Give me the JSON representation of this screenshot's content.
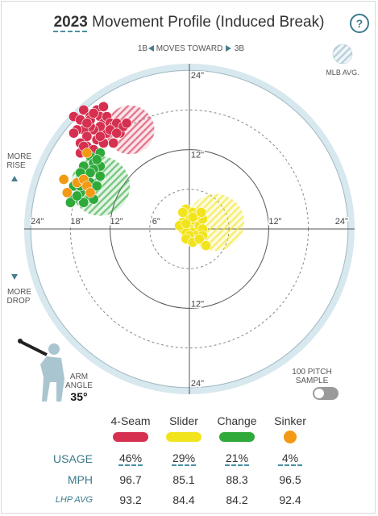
{
  "header": {
    "year": "2023",
    "title": "Movement Profile (Induced Break)",
    "help_icon": "question-icon",
    "help_text": "?"
  },
  "chart": {
    "direction_label": "MOVES TOWARD",
    "direction_left": "1B",
    "direction_right": "3B",
    "legend_mlb": "MLB AVG.",
    "more_rise": [
      "MORE",
      "RISE"
    ],
    "more_drop": [
      "MORE",
      "DROP"
    ],
    "ring_labels_top": [
      "24\"",
      "12\""
    ],
    "ring_labels_bottom": [
      "12\"",
      "24\""
    ],
    "ring_labels_left": [
      "24\"",
      "18\"",
      "12\"",
      "6\""
    ],
    "ring_labels_right": [
      "12\"",
      "24\""
    ],
    "colors": {
      "background": "#d7e8ee",
      "four_seam": "#d63050",
      "slider": "#f2e41c",
      "change": "#2faa3a",
      "sinker": "#f39a14"
    }
  },
  "chart_data": {
    "type": "scatter",
    "title": "2023 Movement Profile (Induced Break)",
    "xlabel": "MOVES TOWARD",
    "ylabel": "",
    "xlim": [
      -24,
      24
    ],
    "ylim": [
      -24,
      24
    ],
    "grid": true,
    "series": [
      {
        "name": "4-Seam",
        "color": "#d63050",
        "mlb_avg": {
          "x": -9,
          "y": 15,
          "r": 3.7
        },
        "points": [
          [
            -17.5,
            17
          ],
          [
            -16,
            18
          ],
          [
            -15,
            17
          ],
          [
            -14,
            18
          ],
          [
            -13.5,
            17
          ],
          [
            -13,
            16
          ],
          [
            -12.5,
            17
          ],
          [
            -12,
            16
          ],
          [
            -11.5,
            15.5
          ],
          [
            -11,
            16
          ],
          [
            -10.5,
            14.5
          ],
          [
            -10,
            15.5
          ],
          [
            -9.5,
            16
          ],
          [
            -12.5,
            14.5
          ],
          [
            -13.5,
            15.5
          ],
          [
            -14.5,
            15
          ],
          [
            -15,
            15.5
          ],
          [
            -16,
            15
          ],
          [
            -17,
            15
          ],
          [
            -15.5,
            14
          ],
          [
            -14,
            13.5
          ],
          [
            -13,
            13
          ],
          [
            -11.5,
            13
          ],
          [
            -15.5,
            12.5
          ],
          [
            -14.5,
            12
          ],
          [
            -16.5,
            13
          ],
          [
            -15,
            16.5
          ],
          [
            -16.5,
            16.5
          ],
          [
            -13,
            18.5
          ],
          [
            -14.5,
            17.5
          ],
          [
            -15.5,
            16
          ],
          [
            -12,
            15
          ],
          [
            -17.5,
            14.5
          ],
          [
            -16.5,
            11.5
          ],
          [
            -16,
            12.5
          ],
          [
            -11,
            14.5
          ],
          [
            -13.5,
            14
          ]
        ]
      },
      {
        "name": "Slider",
        "color": "#f2e41c",
        "mlb_avg": {
          "x": 4,
          "y": 1,
          "r": 4.3
        },
        "points": [
          [
            -0.5,
            3
          ],
          [
            0,
            2
          ],
          [
            0.5,
            2.5
          ],
          [
            -0.5,
            1.5
          ],
          [
            0.5,
            1
          ],
          [
            -1,
            1
          ],
          [
            0,
            0.5
          ],
          [
            1,
            1
          ],
          [
            1.5,
            2
          ],
          [
            1,
            0
          ],
          [
            0,
            0
          ],
          [
            0.5,
            -0.5
          ],
          [
            -1,
            0
          ],
          [
            -0.5,
            -0.5
          ],
          [
            1.5,
            0.5
          ],
          [
            2,
            1.5
          ],
          [
            2,
            0
          ],
          [
            1,
            -1
          ],
          [
            0,
            -1
          ],
          [
            -0.5,
            -1.5
          ],
          [
            2,
            -1
          ],
          [
            0.5,
            -2
          ],
          [
            1.5,
            -1.5
          ],
          [
            1,
            2
          ],
          [
            0.5,
            1.8
          ],
          [
            -1,
            2.5
          ],
          [
            -1.5,
            0.5
          ],
          [
            1.8,
            2.5
          ],
          [
            -0.5,
            0.8
          ],
          [
            2.5,
            -2.5
          ]
        ]
      },
      {
        "name": "Change",
        "color": "#2faa3a",
        "mlb_avg": {
          "x": -13.5,
          "y": 6.5,
          "r": 4.5
        },
        "points": [
          [
            -13.5,
            11.5
          ],
          [
            -15,
            11
          ],
          [
            -14.5,
            10
          ],
          [
            -13.5,
            9.5
          ],
          [
            -14.5,
            9
          ],
          [
            -16,
            9.5
          ],
          [
            -15,
            8.5
          ],
          [
            -16.5,
            8.5
          ],
          [
            -13.5,
            8
          ],
          [
            -16,
            7.5
          ],
          [
            -15,
            7
          ],
          [
            -14,
            6.5
          ],
          [
            -17.5,
            6.5
          ],
          [
            -16.5,
            5.5
          ],
          [
            -15,
            5
          ],
          [
            -17.5,
            4.5
          ],
          [
            -16,
            4
          ],
          [
            -14.5,
            4.5
          ],
          [
            -18,
            4
          ],
          [
            -16.5,
            6.5
          ],
          [
            -14,
            10.5
          ],
          [
            -17,
            5
          ]
        ]
      },
      {
        "name": "Sinker",
        "color": "#f39a14",
        "mlb_avg": null,
        "points": [
          [
            -15.5,
            11.5
          ],
          [
            -17,
            7
          ],
          [
            -16,
            7.5
          ],
          [
            -19,
            7.5
          ],
          [
            -15.5,
            6.5
          ],
          [
            -15,
            5.5
          ],
          [
            -18.5,
            5.5
          ]
        ]
      }
    ]
  },
  "arm": {
    "label": [
      "ARM",
      "ANGLE"
    ],
    "value": "35°",
    "icon": "pitcher-silhouette-icon"
  },
  "toggle": {
    "label": [
      "100 PITCH",
      "SAMPLE"
    ]
  },
  "table": {
    "pitches": [
      "4-Seam",
      "Slider",
      "Change",
      "Sinker"
    ],
    "row_labels": [
      "USAGE",
      "MPH",
      "LHP AVG"
    ],
    "usage": [
      "46%",
      "29%",
      "21%",
      "4%"
    ],
    "mph": [
      "96.7",
      "85.1",
      "88.3",
      "96.5"
    ],
    "lhp_avg": [
      "93.2",
      "84.4",
      "84.2",
      "92.4"
    ]
  }
}
